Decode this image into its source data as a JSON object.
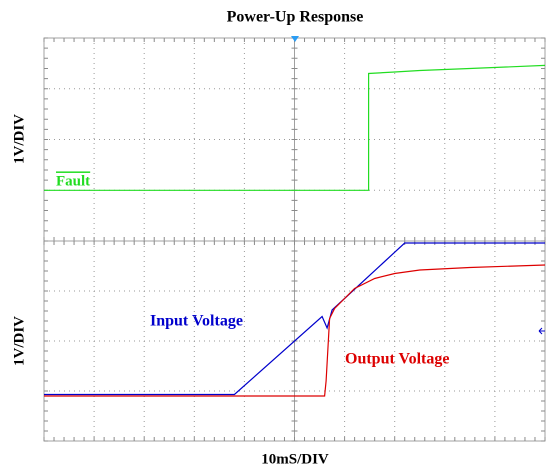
{
  "chart_data": [
    {
      "type": "line",
      "title": "Power-Up Response",
      "ylabel": "1V/DIV",
      "xlim": [
        0,
        100
      ],
      "xticks": [
        0,
        10,
        20,
        30,
        40,
        50,
        60,
        70,
        80,
        90,
        100
      ],
      "ylim": [
        0,
        4
      ],
      "yticks": [
        0,
        1,
        2,
        3,
        4
      ],
      "grid": true,
      "series": [
        {
          "name": "Fault",
          "color": "#22dd22",
          "x": [
            0,
            64.8,
            64.8,
            70,
            75,
            85,
            100
          ],
          "values": [
            1.0,
            1.0,
            3.3,
            3.33,
            3.36,
            3.4,
            3.46
          ]
        }
      ]
    },
    {
      "type": "line",
      "ylabel": "1V/DIV",
      "xlabel": "10mS/DIV",
      "xlim": [
        0,
        100
      ],
      "xticks": [
        0,
        10,
        20,
        30,
        40,
        50,
        60,
        70,
        80,
        90,
        100
      ],
      "ylim": [
        0,
        4
      ],
      "yticks": [
        0,
        1,
        2,
        3,
        4
      ],
      "grid": true,
      "series": [
        {
          "name": "Input Voltage",
          "color": "#0000cc",
          "x": [
            0,
            38,
            55.5,
            56.5,
            57.5,
            72,
            100
          ],
          "values": [
            0.93,
            0.93,
            2.49,
            2.26,
            2.62,
            3.96,
            3.96
          ]
        },
        {
          "name": "Output Voltage",
          "color": "#dd0000",
          "x": [
            0,
            56,
            56.3,
            57,
            58,
            62,
            66,
            70,
            75,
            85,
            100
          ],
          "values": [
            0.9,
            0.9,
            1.2,
            2.45,
            2.65,
            3.05,
            3.25,
            3.35,
            3.42,
            3.47,
            3.52
          ]
        }
      ]
    }
  ]
}
